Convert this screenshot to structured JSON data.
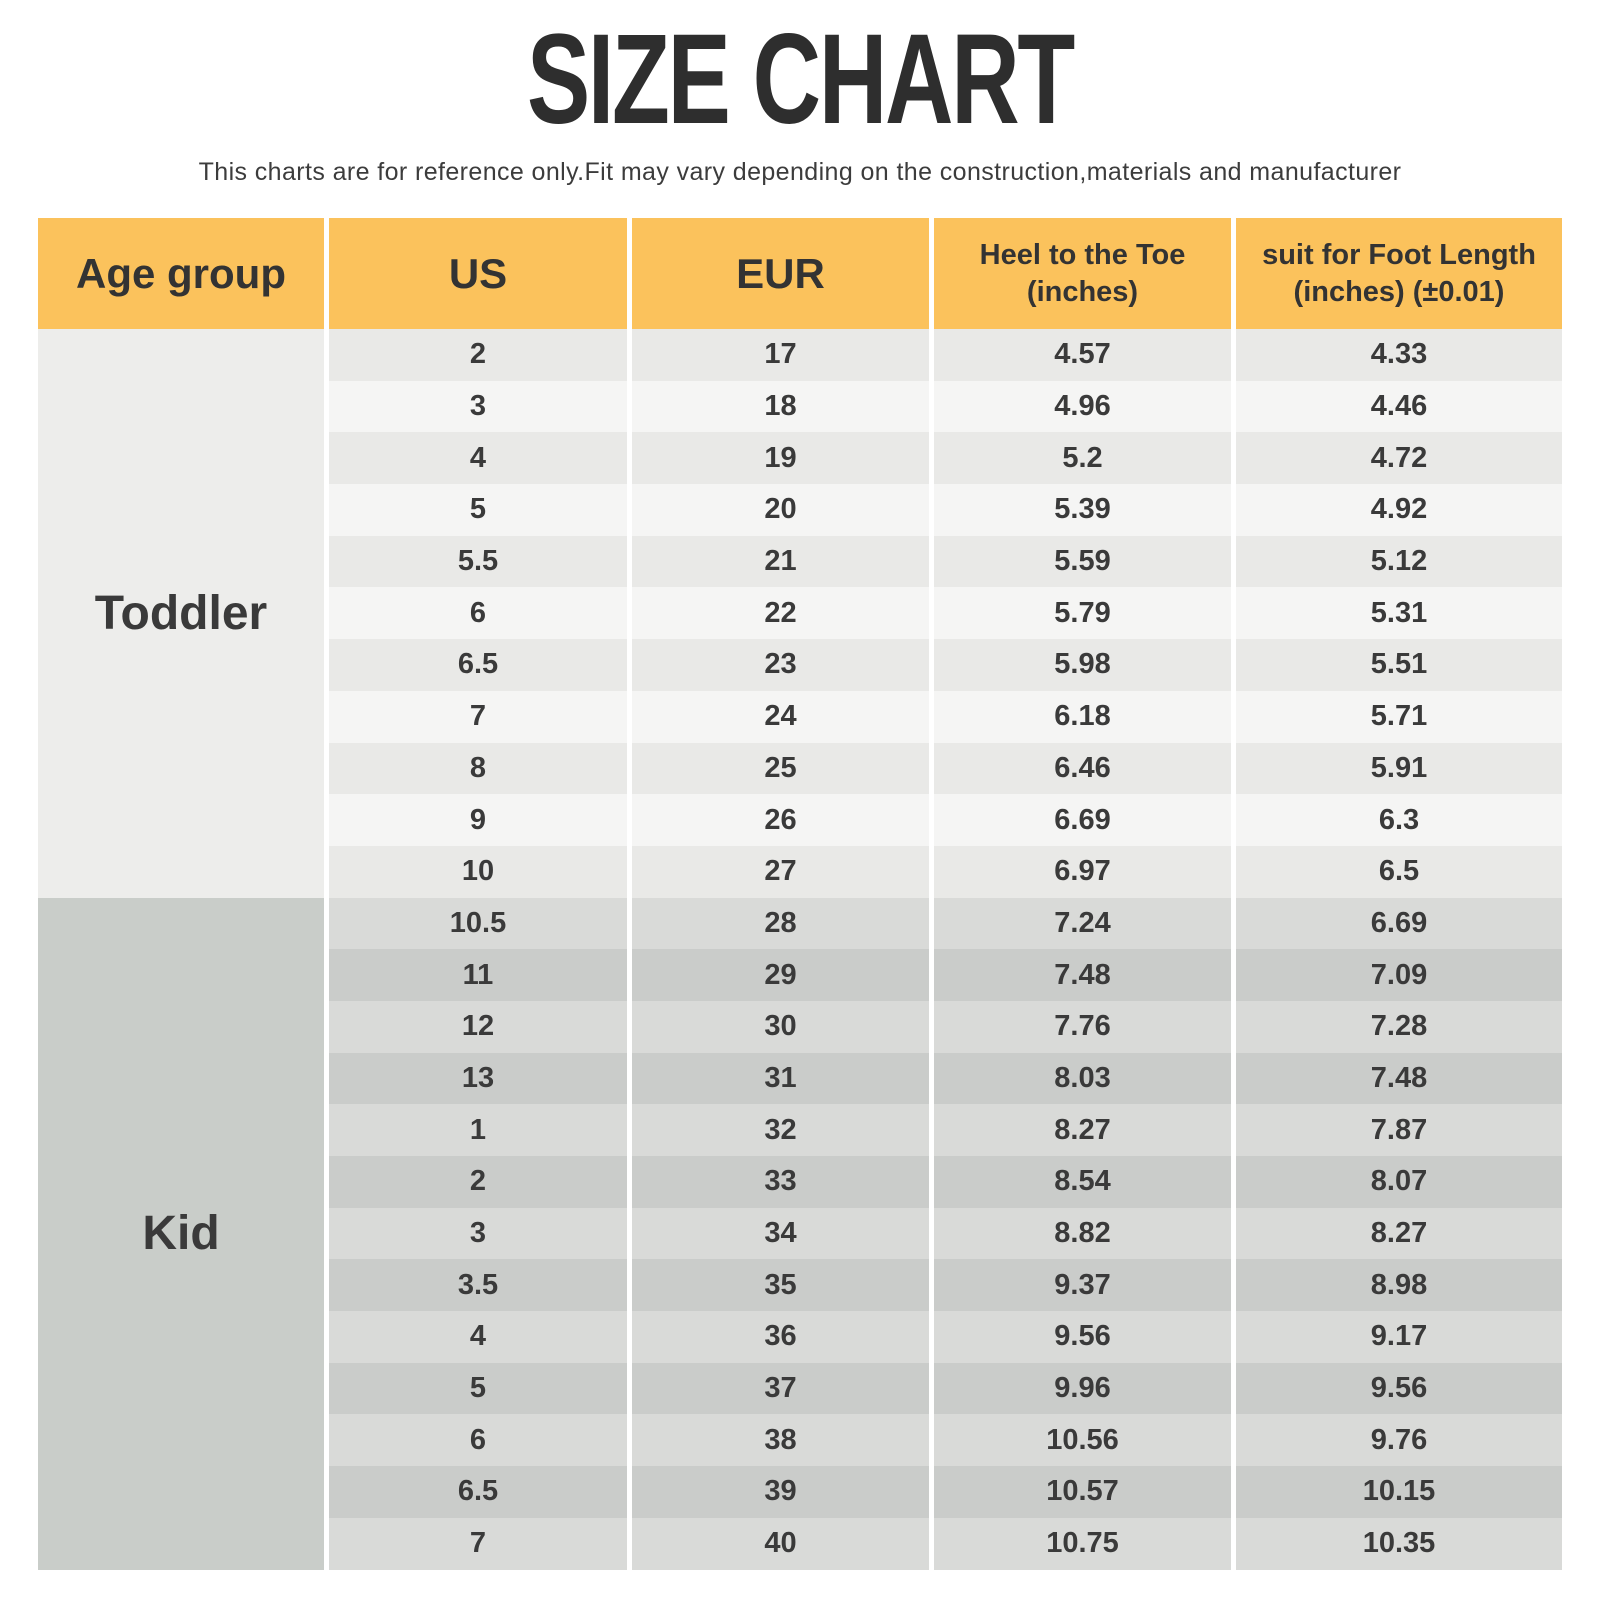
{
  "title": "SIZE CHART",
  "subtitle": "This charts are for reference only.Fit may vary depending on the construction,materials and manufacturer",
  "colors": {
    "header_bg": "#FBC25C",
    "toddler_group_bg": "#EDEDEB",
    "toddler_row_dark": "#E9E9E7",
    "toddler_row_light": "#F5F5F4",
    "kid_group_bg": "#C9CDC9",
    "kid_row_dark": "#CACCCA",
    "kid_row_light": "#D9DAD8",
    "text": "#3A3A3A"
  },
  "table": {
    "headers": [
      "Age group",
      "US",
      "EUR",
      "Heel to the Toe\n(inches)",
      "suit for Foot Length\n(inches)  (±0.01)"
    ]
  },
  "chart_data": {
    "type": "table",
    "title": "SIZE CHART",
    "subtitle": "This charts are for reference only.Fit may vary depending on the construction,materials and manufacturer",
    "columns": [
      "Age group",
      "US",
      "EUR",
      "Heel to the Toe (inches)",
      "suit for Foot Length (inches) (±0.01)"
    ],
    "sections": [
      {
        "label": "Toddler",
        "rows": [
          [
            "2",
            "17",
            "4.57",
            "4.33"
          ],
          [
            "3",
            "18",
            "4.96",
            "4.46"
          ],
          [
            "4",
            "19",
            "5.2",
            "4.72"
          ],
          [
            "5",
            "20",
            "5.39",
            "4.92"
          ],
          [
            "5.5",
            "21",
            "5.59",
            "5.12"
          ],
          [
            "6",
            "22",
            "5.79",
            "5.31"
          ],
          [
            "6.5",
            "23",
            "5.98",
            "5.51"
          ],
          [
            "7",
            "24",
            "6.18",
            "5.71"
          ],
          [
            "8",
            "25",
            "6.46",
            "5.91"
          ],
          [
            "9",
            "26",
            "6.69",
            "6.3"
          ],
          [
            "10",
            "27",
            "6.97",
            "6.5"
          ]
        ]
      },
      {
        "label": "Kid",
        "rows": [
          [
            "10.5",
            "28",
            "7.24",
            "6.69"
          ],
          [
            "11",
            "29",
            "7.48",
            "7.09"
          ],
          [
            "12",
            "30",
            "7.76",
            "7.28"
          ],
          [
            "13",
            "31",
            "8.03",
            "7.48"
          ],
          [
            "1",
            "32",
            "8.27",
            "7.87"
          ],
          [
            "2",
            "33",
            "8.54",
            "8.07"
          ],
          [
            "3",
            "34",
            "8.82",
            "8.27"
          ],
          [
            "3.5",
            "35",
            "9.37",
            "8.98"
          ],
          [
            "4",
            "36",
            "9.56",
            "9.17"
          ],
          [
            "5",
            "37",
            "9.96",
            "9.56"
          ],
          [
            "6",
            "38",
            "10.56",
            "9.76"
          ],
          [
            "6.5",
            "39",
            "10.57",
            "10.15"
          ],
          [
            "7",
            "40",
            "10.75",
            "10.35"
          ]
        ]
      }
    ]
  }
}
